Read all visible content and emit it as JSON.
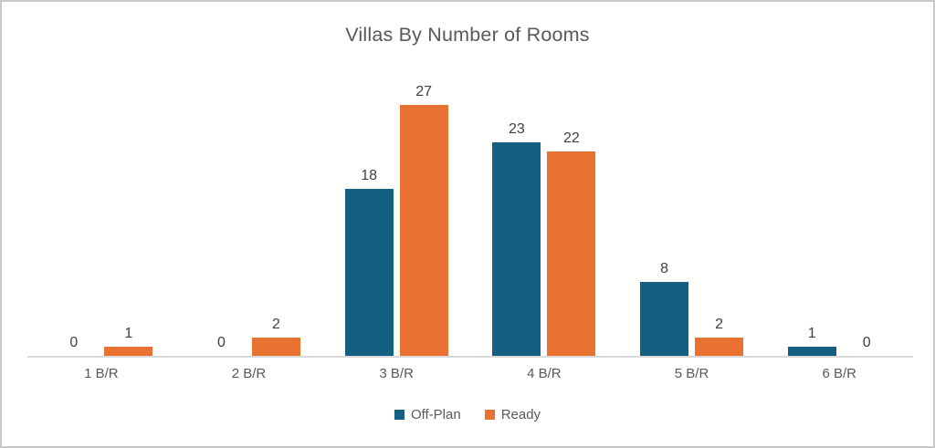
{
  "chart_data": {
    "type": "bar",
    "title": "Villas By Number of Rooms",
    "categories": [
      "1 B/R",
      "2 B/R",
      "3 B/R",
      "4 B/R",
      "5 B/R",
      "6 B/R"
    ],
    "series": [
      {
        "name": "Off-Plan",
        "color": "#156082",
        "values": [
          0,
          0,
          18,
          23,
          8,
          1
        ]
      },
      {
        "name": "Ready",
        "color": "#E97132",
        "values": [
          1,
          2,
          27,
          22,
          2,
          0
        ]
      }
    ],
    "xlabel": "",
    "ylabel": "",
    "ylim": [
      0,
      32
    ],
    "grid": false,
    "data_labels": true,
    "legend_position": "bottom",
    "colors": {
      "title_text": "#595959",
      "data_label_text": "#404040",
      "axis_label_text": "#595959",
      "axis_line": "#D9D9D9",
      "background": "#FFFFFF",
      "frame_border": "#C9C9C9"
    }
  }
}
